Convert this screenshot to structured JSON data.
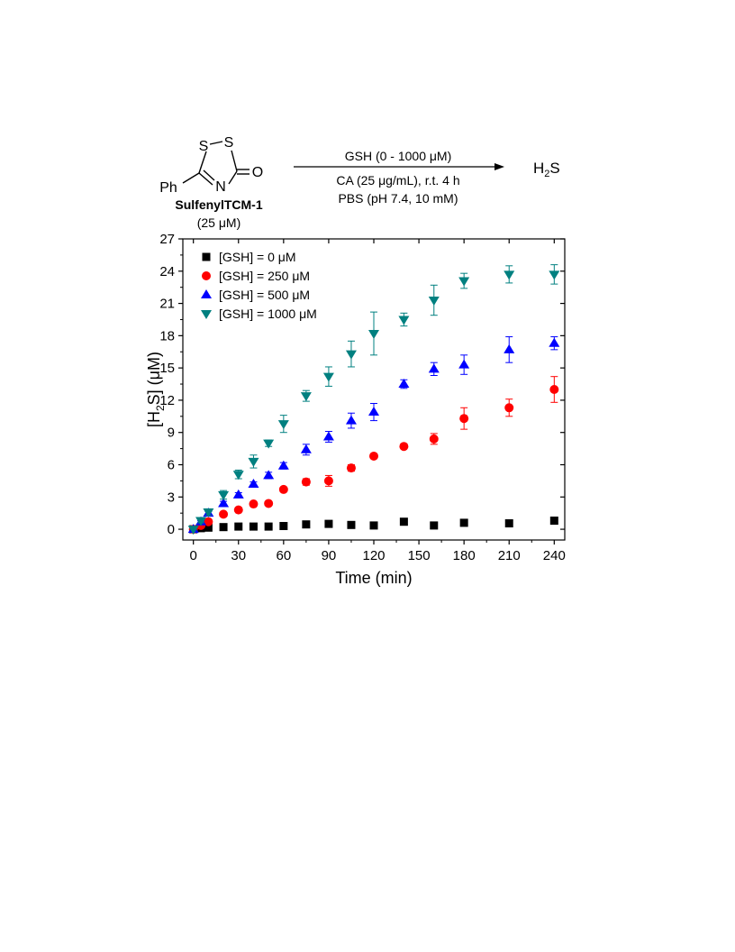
{
  "scheme": {
    "ring_atoms": {
      "s1": "S",
      "s2": "S",
      "n": "N",
      "o": "O"
    },
    "substituent": "Ph",
    "compound_name": "SulfenylTCM-1",
    "compound_conc": "(25 μM)",
    "condition_top": "GSH (0 - 1000 μM)",
    "condition_mid": "CA (25 μg/mL), r.t. 4 h",
    "condition_bot": "PBS (pH 7.4, 10 mM)",
    "product_main": "H",
    "product_sub": "2",
    "product_tail": "S"
  },
  "chart_data": {
    "type": "scatter",
    "title": "",
    "xlabel": "Time (min)",
    "ylabel_pre": "[H",
    "ylabel_sub": "2",
    "ylabel_post": "S] (μM)",
    "xlim": [
      -7,
      247
    ],
    "ylim": [
      -1,
      27
    ],
    "xticks": [
      0,
      30,
      60,
      90,
      120,
      150,
      180,
      210,
      240
    ],
    "xtick_labels": [
      "0",
      "30",
      "60",
      "90",
      "120",
      "150",
      "180",
      "210",
      "240"
    ],
    "yticks": [
      0,
      3,
      6,
      9,
      12,
      15,
      18,
      21,
      24,
      27
    ],
    "ytick_labels": [
      "0",
      "3",
      "6",
      "9",
      "12",
      "15",
      "18",
      "21",
      "24",
      "27"
    ],
    "legend_position": "top-left",
    "series": [
      {
        "name": "[GSH] = 0 μM",
        "color": "#000000",
        "marker": "square",
        "points": [
          [
            0,
            0
          ],
          [
            5,
            0.1
          ],
          [
            10,
            0.15
          ],
          [
            20,
            0.2
          ],
          [
            30,
            0.25
          ],
          [
            40,
            0.25
          ],
          [
            50,
            0.25
          ],
          [
            60,
            0.3
          ],
          [
            75,
            0.45
          ],
          [
            90,
            0.5
          ],
          [
            105,
            0.4
          ],
          [
            120,
            0.35
          ],
          [
            140,
            0.7
          ],
          [
            160,
            0.35
          ],
          [
            180,
            0.6
          ],
          [
            210,
            0.55
          ],
          [
            240,
            0.8
          ]
        ],
        "errors": [
          0,
          0.05,
          0.05,
          0.05,
          0.05,
          0.05,
          0.05,
          0.05,
          0.1,
          0.1,
          0.1,
          0.1,
          0.3,
          0.1,
          0.15,
          0.1,
          0.15
        ]
      },
      {
        "name": "[GSH] = 250 μM",
        "color": "#ff0000",
        "marker": "circle",
        "points": [
          [
            0,
            0
          ],
          [
            5,
            0.35
          ],
          [
            10,
            0.7
          ],
          [
            20,
            1.4
          ],
          [
            30,
            1.8
          ],
          [
            40,
            2.35
          ],
          [
            50,
            2.4
          ],
          [
            60,
            3.7
          ],
          [
            75,
            4.4
          ],
          [
            90,
            4.5
          ],
          [
            105,
            5.7
          ],
          [
            120,
            6.8
          ],
          [
            140,
            7.7
          ],
          [
            160,
            8.4
          ],
          [
            180,
            10.3
          ],
          [
            210,
            11.3
          ],
          [
            240,
            13.0
          ]
        ],
        "errors": [
          0,
          0.05,
          0.1,
          0.1,
          0.1,
          0.15,
          0.15,
          0.2,
          0.3,
          0.5,
          0.3,
          0.2,
          0.2,
          0.5,
          1.0,
          0.8,
          1.2
        ]
      },
      {
        "name": "[GSH] = 500 μM",
        "color": "#0000ff",
        "marker": "triangle-up",
        "points": [
          [
            0,
            0
          ],
          [
            5,
            0.7
          ],
          [
            10,
            1.5
          ],
          [
            20,
            2.4
          ],
          [
            30,
            3.2
          ],
          [
            40,
            4.2
          ],
          [
            50,
            5.0
          ],
          [
            60,
            5.9
          ],
          [
            75,
            7.4
          ],
          [
            90,
            8.6
          ],
          [
            105,
            10.1
          ],
          [
            120,
            10.9
          ],
          [
            140,
            13.5
          ],
          [
            160,
            14.9
          ],
          [
            180,
            15.3
          ],
          [
            210,
            16.7
          ],
          [
            240,
            17.3
          ]
        ],
        "errors": [
          0,
          0.1,
          0.15,
          0.2,
          0.2,
          0.2,
          0.3,
          0.3,
          0.5,
          0.5,
          0.7,
          0.8,
          0.4,
          0.6,
          0.9,
          1.2,
          0.6
        ]
      },
      {
        "name": "[GSH] = 1000 μM",
        "color": "#008080",
        "marker": "triangle-down",
        "points": [
          [
            0,
            0
          ],
          [
            5,
            0.8
          ],
          [
            10,
            1.6
          ],
          [
            20,
            3.2
          ],
          [
            30,
            5.1
          ],
          [
            40,
            6.3
          ],
          [
            50,
            8.0
          ],
          [
            60,
            9.8
          ],
          [
            75,
            12.4
          ],
          [
            90,
            14.2
          ],
          [
            105,
            16.3
          ],
          [
            120,
            18.2
          ],
          [
            140,
            19.5
          ],
          [
            160,
            21.3
          ],
          [
            180,
            23.1
          ],
          [
            210,
            23.7
          ],
          [
            240,
            23.7
          ]
        ],
        "errors": [
          0,
          0.2,
          0.3,
          0.4,
          0.4,
          0.6,
          0.3,
          0.8,
          0.5,
          0.9,
          1.2,
          2.0,
          0.6,
          1.4,
          0.7,
          0.8,
          0.9
        ]
      }
    ]
  }
}
